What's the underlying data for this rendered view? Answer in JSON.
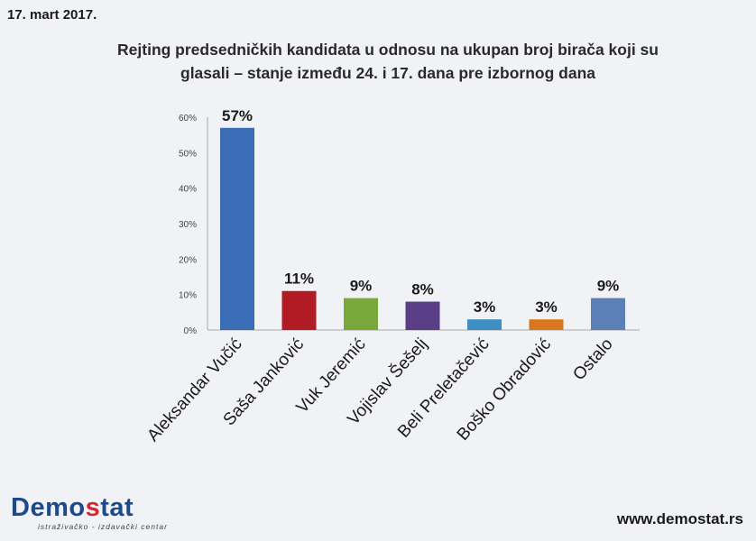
{
  "header": {
    "date": "17. mart 2017."
  },
  "chart_data": {
    "type": "bar",
    "title": "Rejting predsedničkih kandidata u odnosu na ukupan broj birača koji su glasali – stanje između 24. i 17. dana pre izbornog dana",
    "title_lines": [
      "Rejting predsedničkih kandidata u odnosu na ukupan broj birača koji su",
      "glasali – stanje između 24. i 17. dana pre izbornog dana"
    ],
    "categories": [
      "Aleksandar Vučić",
      "Saša Janković",
      "Vuk Jeremić",
      "Vojislav Šešelj",
      "Beli Preletačević",
      "Boško Obradović",
      "Ostalo"
    ],
    "values": [
      57,
      11,
      9,
      8,
      3,
      3,
      9
    ],
    "data_labels": [
      "57%",
      "11%",
      "9%",
      "8%",
      "3%",
      "3%",
      "9%"
    ],
    "colors": [
      "#3a6db5",
      "#b11c24",
      "#79a83a",
      "#5a3e87",
      "#3f8fc4",
      "#d8771f",
      "#5c7fb8"
    ],
    "ylim": [
      0,
      60
    ],
    "yticks": [
      0,
      10,
      20,
      30,
      40,
      50,
      60
    ],
    "ytick_labels": [
      "0%",
      "10%",
      "20%",
      "30%",
      "40%",
      "50%",
      "60%"
    ],
    "grid": false,
    "legend": "none"
  },
  "footer": {
    "logo_text_1": "Demo",
    "logo_text_accent": "s",
    "logo_text_2": "tat",
    "logo_subtitle": "istraživačko - izdavački centar",
    "website": "www.demostat.rs"
  }
}
